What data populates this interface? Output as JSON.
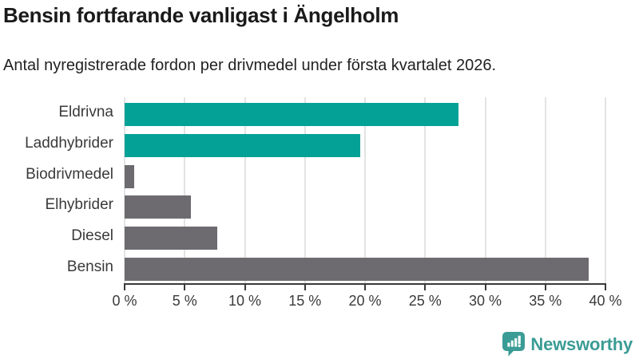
{
  "header": {
    "title": "Bensin fortfarande vanligast i Ängelholm",
    "subtitle": "Antal nyregistrerade fordon per drivmedel under första kvartalet 2026."
  },
  "chart_data": {
    "type": "bar",
    "orientation": "horizontal",
    "title": "Bensin fortfarande vanligast i Ängelholm",
    "subtitle": "Antal nyregistrerade fordon per drivmedel under första kvartalet 2026.",
    "categories": [
      "Eldrivna",
      "Laddhybrider",
      "Biodrivmedel",
      "Elhybrider",
      "Diesel",
      "Bensin"
    ],
    "values": [
      27.8,
      19.6,
      0.8,
      5.5,
      7.7,
      38.6
    ],
    "unit": "%",
    "bar_colors": [
      "#04a296",
      "#04a296",
      "#6d6b70",
      "#6d6b70",
      "#6d6b70",
      "#6d6b70"
    ],
    "xlim": [
      0,
      40
    ],
    "x_ticks": [
      0,
      5,
      10,
      15,
      20,
      25,
      30,
      35,
      40
    ],
    "x_tick_labels": [
      "0 %",
      "5 %",
      "10 %",
      "15 %",
      "20 %",
      "25 %",
      "30 %",
      "35 %",
      "40 %"
    ],
    "grid": true,
    "legend": "none"
  },
  "branding": {
    "logo_text": "Newsworthy",
    "logo_icon": "newsworthy-speech-bubble-bar-chart-icon",
    "logo_color": "#3b9c95"
  },
  "colors": {
    "bar_teal": "#04a296",
    "bar_gray": "#6d6b70",
    "gridline": "#e3e3e3",
    "axis": "#3a3a3a",
    "title_text": "#1a1a1a",
    "label_text": "#3a3a3a"
  }
}
